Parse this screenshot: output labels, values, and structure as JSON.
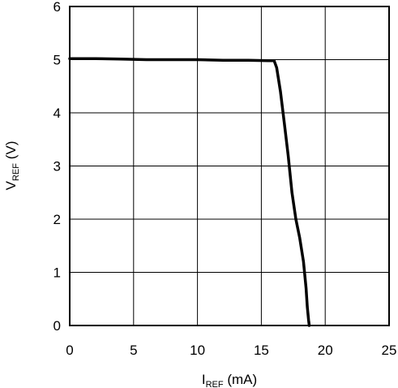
{
  "chart_data": {
    "type": "line",
    "xlabel": {
      "main": "I",
      "sub": "REF",
      "unit": " (mA)"
    },
    "ylabel": {
      "main": "V",
      "sub": "REF",
      "unit": " (V)"
    },
    "xlim": [
      0,
      25
    ],
    "ylim": [
      0,
      6
    ],
    "xticks": [
      "0",
      "5",
      "10",
      "15",
      "20",
      "25"
    ],
    "yticks": [
      "0",
      "1",
      "2",
      "3",
      "4",
      "5",
      "6"
    ],
    "grid": true,
    "series": [
      {
        "x": [
          0,
          2,
          4,
          6,
          8,
          10,
          12,
          14,
          15.5,
          16.0,
          16.2,
          16.5,
          16.8,
          17.1,
          17.4,
          17.7,
          18.0,
          18.3,
          18.5,
          18.6,
          18.7,
          18.75
        ],
        "y": [
          5.02,
          5.02,
          5.01,
          5.0,
          5.0,
          5.0,
          4.99,
          4.99,
          4.98,
          4.98,
          4.85,
          4.4,
          3.8,
          3.2,
          2.5,
          2.0,
          1.65,
          1.2,
          0.7,
          0.35,
          0.1,
          0.0
        ]
      }
    ]
  }
}
